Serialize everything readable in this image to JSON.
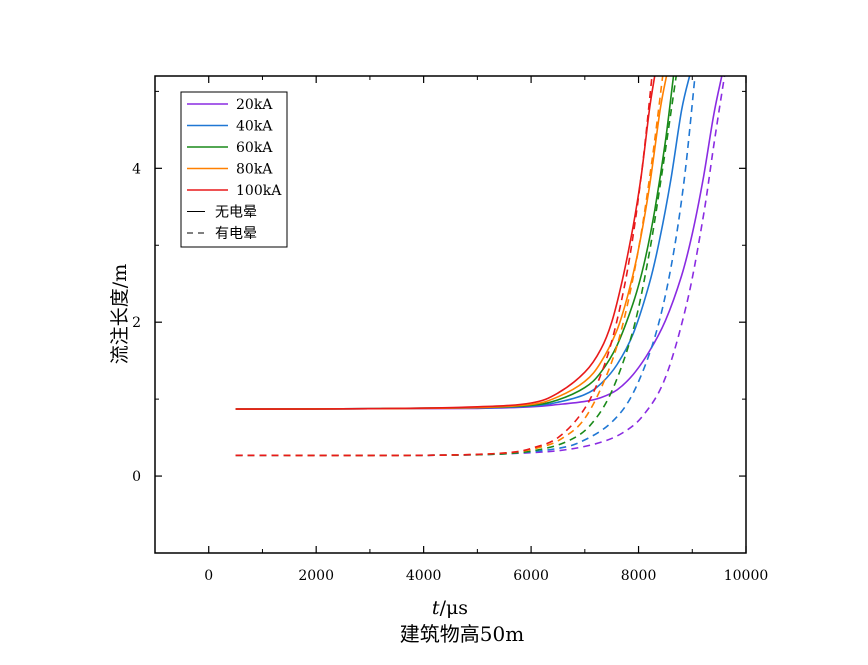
{
  "chart_data": {
    "type": "line",
    "title": "",
    "caption": "建筑物高50m",
    "xlabel_italic": "t",
    "xlabel_unit": "/μs",
    "ylabel": "流注长度/m",
    "xlim": [
      -1000,
      10000
    ],
    "ylim": [
      -1,
      5.2
    ],
    "xticks": [
      0,
      2000,
      4000,
      6000,
      8000,
      10000
    ],
    "xtick_labels": [
      "0",
      "2000",
      "4000",
      "6000",
      "8000",
      "10000"
    ],
    "yticks": [
      0,
      2,
      4
    ],
    "ytick_labels": [
      "0",
      "2",
      "4"
    ],
    "grid": false,
    "legend_position": "top-left",
    "legend": [
      {
        "label": "20kA",
        "color": "#8a2be2",
        "style": "solid"
      },
      {
        "label": "40kA",
        "color": "#1f77d4",
        "style": "solid"
      },
      {
        "label": "60kA",
        "color": "#1a8a1a",
        "style": "solid"
      },
      {
        "label": "80kA",
        "color": "#ff8000",
        "style": "solid"
      },
      {
        "label": "100kA",
        "color": "#e8191a",
        "style": "solid"
      },
      {
        "label": "无电晕",
        "color": "#000000",
        "style": "solid"
      },
      {
        "label": "有电晕",
        "color": "#000000",
        "style": "dashed"
      }
    ],
    "series": [
      {
        "name": "20kA 无电晕",
        "color": "#8a2be2",
        "style": "solid",
        "x": [
          500,
          3000,
          5000,
          6000,
          6500,
          7000,
          7300,
          7600,
          7900,
          8200,
          8500,
          8800,
          9000,
          9200,
          9400,
          9550
        ],
        "y": [
          0.87,
          0.875,
          0.88,
          0.9,
          0.93,
          0.97,
          1.02,
          1.12,
          1.32,
          1.62,
          2.02,
          2.6,
          3.15,
          3.85,
          4.7,
          5.2
        ]
      },
      {
        "name": "40kA 无电晕",
        "color": "#1f77d4",
        "style": "solid",
        "x": [
          500,
          3000,
          5000,
          6000,
          6500,
          7000,
          7300,
          7600,
          7900,
          8200,
          8400,
          8600,
          8800,
          8950
        ],
        "y": [
          0.87,
          0.875,
          0.885,
          0.91,
          0.96,
          1.06,
          1.2,
          1.45,
          1.85,
          2.5,
          3.1,
          3.85,
          4.75,
          5.2
        ]
      },
      {
        "name": "60kA 无电晕",
        "color": "#1a8a1a",
        "style": "solid",
        "x": [
          500,
          3000,
          5000,
          6000,
          6500,
          7000,
          7300,
          7600,
          7900,
          8100,
          8300,
          8500,
          8650
        ],
        "y": [
          0.87,
          0.875,
          0.89,
          0.92,
          0.99,
          1.15,
          1.35,
          1.7,
          2.25,
          2.75,
          3.45,
          4.35,
          5.2
        ]
      },
      {
        "name": "80kA 无电晕",
        "color": "#ff8000",
        "style": "solid",
        "x": [
          500,
          3000,
          5000,
          6000,
          6500,
          7000,
          7300,
          7600,
          7800,
          8000,
          8200,
          8400,
          8520
        ],
        "y": [
          0.87,
          0.875,
          0.89,
          0.93,
          1.03,
          1.23,
          1.48,
          1.9,
          2.35,
          2.95,
          3.75,
          4.75,
          5.2
        ]
      },
      {
        "name": "100kA 无电晕",
        "color": "#e8191a",
        "style": "solid",
        "x": [
          500,
          3000,
          5000,
          6000,
          6500,
          7000,
          7300,
          7500,
          7700,
          7900,
          8050,
          8200,
          8300
        ],
        "y": [
          0.87,
          0.875,
          0.9,
          0.95,
          1.08,
          1.35,
          1.65,
          2.0,
          2.55,
          3.25,
          3.9,
          4.75,
          5.2
        ]
      },
      {
        "name": "20kA 有电晕",
        "color": "#8a2be2",
        "style": "dashed",
        "x": [
          500,
          4000,
          5500,
          6500,
          7200,
          7700,
          8100,
          8500,
          8900,
          9200,
          9400,
          9600
        ],
        "y": [
          0.27,
          0.27,
          0.29,
          0.33,
          0.42,
          0.56,
          0.8,
          1.28,
          2.25,
          3.35,
          4.3,
          5.2
        ]
      },
      {
        "name": "40kA 有电晕",
        "color": "#1f77d4",
        "style": "dashed",
        "x": [
          500,
          4000,
          5500,
          6500,
          7000,
          7500,
          7900,
          8300,
          8600,
          8850,
          9050
        ],
        "y": [
          0.27,
          0.27,
          0.29,
          0.36,
          0.47,
          0.7,
          1.08,
          1.8,
          2.7,
          3.85,
          5.2
        ]
      },
      {
        "name": "60kA 有电晕",
        "color": "#1a8a1a",
        "style": "dashed",
        "x": [
          500,
          4000,
          5500,
          6200,
          6700,
          7100,
          7500,
          7900,
          8200,
          8450,
          8700
        ],
        "y": [
          0.27,
          0.27,
          0.29,
          0.35,
          0.46,
          0.66,
          1.1,
          1.9,
          2.9,
          4.0,
          5.2
        ]
      },
      {
        "name": "80kA 有电晕",
        "color": "#ff8000",
        "style": "dashed",
        "x": [
          500,
          4000,
          5500,
          6200,
          6600,
          7000,
          7400,
          7700,
          8000,
          8250,
          8450
        ],
        "y": [
          0.27,
          0.27,
          0.3,
          0.38,
          0.5,
          0.75,
          1.3,
          1.95,
          2.95,
          4.1,
          5.2
        ]
      },
      {
        "name": "100kA 有电晕",
        "color": "#e8191a",
        "style": "dashed",
        "x": [
          500,
          4000,
          5500,
          6100,
          6500,
          6900,
          7200,
          7500,
          7800,
          8050,
          8250
        ],
        "y": [
          0.27,
          0.27,
          0.3,
          0.38,
          0.5,
          0.78,
          1.15,
          1.75,
          2.7,
          3.9,
          5.2
        ]
      }
    ]
  }
}
